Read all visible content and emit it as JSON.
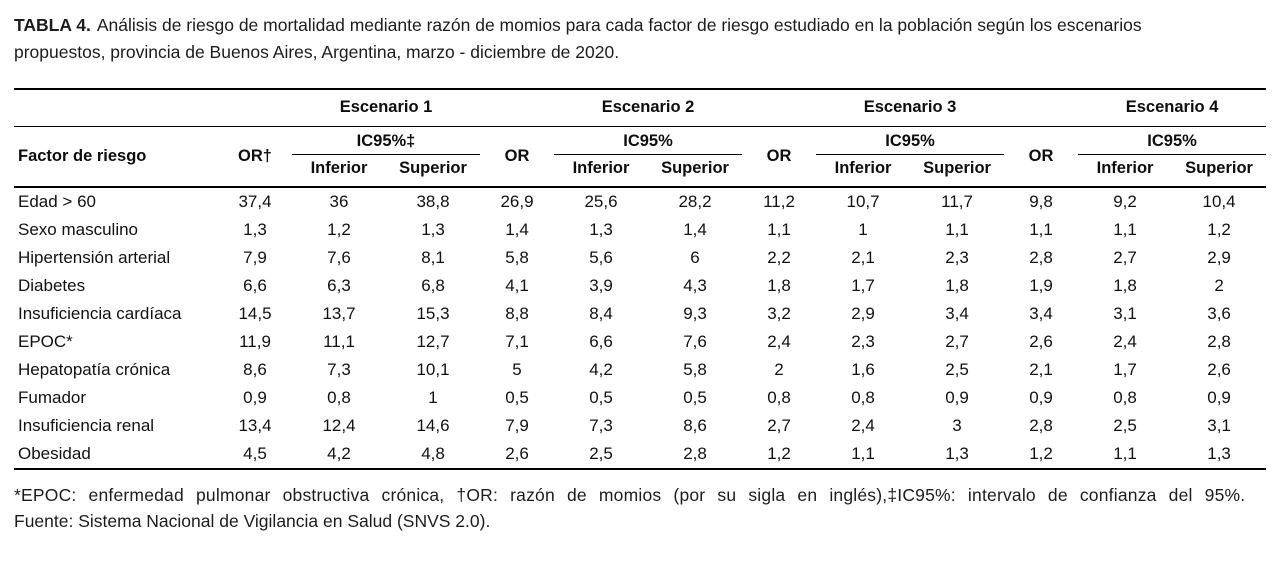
{
  "caption": {
    "label": "TABLA 4.",
    "text": "Análisis de riesgo de mortalidad mediante razón de momios para cada factor de riesgo estudiado en la población según los escenarios propuestos, provincia de Buenos Aires, Argentina, marzo - diciembre de 2020."
  },
  "table": {
    "factor_header": "Factor de riesgo",
    "sub_inferior": "Inferior",
    "sub_superior": "Superior",
    "scenarios": [
      {
        "label": "Escenario 1",
        "or_label": "OR†",
        "ic_label": "IC95%‡"
      },
      {
        "label": "Escenario 2",
        "or_label": "OR",
        "ic_label": "IC95%"
      },
      {
        "label": "Escenario 3",
        "or_label": "OR",
        "ic_label": "IC95%"
      },
      {
        "label": "Escenario 4",
        "or_label": "OR",
        "ic_label": "IC95%"
      }
    ],
    "rows": [
      {
        "factor": "Edad > 60",
        "values": [
          "37,4",
          "36",
          "38,8",
          "26,9",
          "25,6",
          "28,2",
          "11,2",
          "10,7",
          "11,7",
          "9,8",
          "9,2",
          "10,4"
        ]
      },
      {
        "factor": "Sexo masculino",
        "values": [
          "1,3",
          "1,2",
          "1,3",
          "1,4",
          "1,3",
          "1,4",
          "1,1",
          "1",
          "1,1",
          "1,1",
          "1,1",
          "1,2"
        ]
      },
      {
        "factor": "Hipertensión arterial",
        "values": [
          "7,9",
          "7,6",
          "8,1",
          "5,8",
          "5,6",
          "6",
          "2,2",
          "2,1",
          "2,3",
          "2,8",
          "2,7",
          "2,9"
        ]
      },
      {
        "factor": "Diabetes",
        "values": [
          "6,6",
          "6,3",
          "6,8",
          "4,1",
          "3,9",
          "4,3",
          "1,8",
          "1,7",
          "1,8",
          "1,9",
          "1,8",
          "2"
        ]
      },
      {
        "factor": "Insuficiencia cardíaca",
        "values": [
          "14,5",
          "13,7",
          "15,3",
          "8,8",
          "8,4",
          "9,3",
          "3,2",
          "2,9",
          "3,4",
          "3,4",
          "3,1",
          "3,6"
        ]
      },
      {
        "factor": "EPOC*",
        "values": [
          "11,9",
          "11,1",
          "12,7",
          "7,1",
          "6,6",
          "7,6",
          "2,4",
          "2,3",
          "2,7",
          "2,6",
          "2,4",
          "2,8"
        ]
      },
      {
        "factor": "Hepatopatía crónica",
        "values": [
          "8,6",
          "7,3",
          "10,1",
          "5",
          "4,2",
          "5,8",
          "2",
          "1,6",
          "2,5",
          "2,1",
          "1,7",
          "2,6"
        ]
      },
      {
        "factor": "Fumador",
        "values": [
          "0,9",
          "0,8",
          "1",
          "0,5",
          "0,5",
          "0,5",
          "0,8",
          "0,8",
          "0,9",
          "0,9",
          "0,8",
          "0,9"
        ]
      },
      {
        "factor": "Insuficiencia renal",
        "values": [
          "13,4",
          "12,4",
          "14,6",
          "7,9",
          "7,3",
          "8,6",
          "2,7",
          "2,4",
          "3",
          "2,8",
          "2,5",
          "3,1"
        ]
      },
      {
        "factor": "Obesidad",
        "values": [
          "4,5",
          "4,2",
          "4,8",
          "2,6",
          "2,5",
          "2,8",
          "1,2",
          "1,1",
          "1,3",
          "1,2",
          "1,1",
          "1,3"
        ]
      }
    ]
  },
  "footnotes": [
    "*EPOC: enfermedad pulmonar obstructiva crónica, †OR: razón de momios (por su sigla en inglés),‡IC95%: intervalo de confianza del 95%.",
    "Fuente: Sistema Nacional de Vigilancia en Salud (SNVS 2.0)."
  ]
}
